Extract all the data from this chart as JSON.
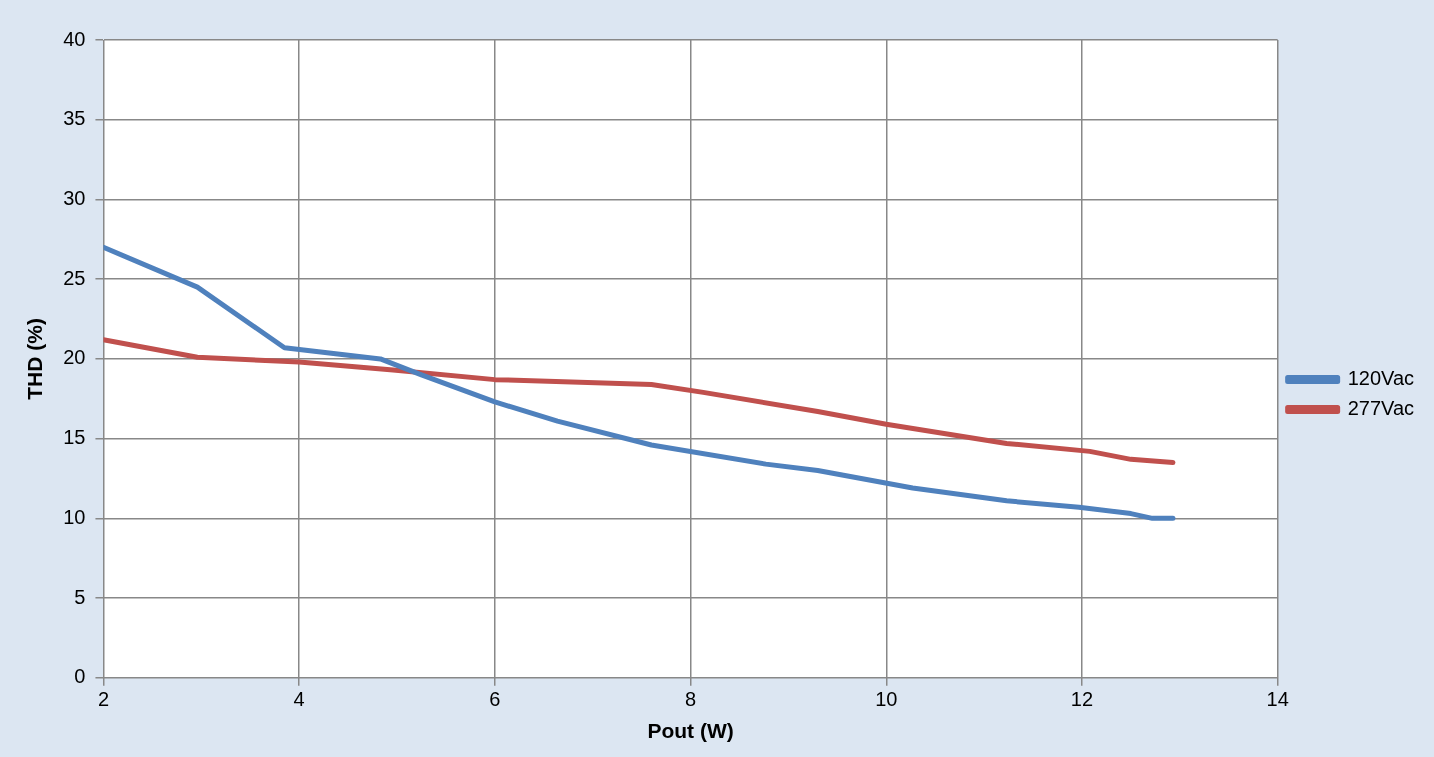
{
  "chart_data": {
    "type": "line",
    "xlabel": "Pout (W)",
    "ylabel": "THD (%)",
    "xlim": [
      2,
      14
    ],
    "xticks": [
      2,
      4,
      6,
      8,
      10,
      12,
      14
    ],
    "ylim": [
      0,
      40
    ],
    "yticks": [
      0,
      5,
      10,
      15,
      20,
      25,
      30,
      35,
      40
    ],
    "grid": true,
    "legend": "right",
    "marker": "none",
    "series": [
      {
        "name": "120Vac",
        "color": "#4f81bd",
        "x": [
          2,
          2.96,
          3.85,
          4.83,
          5.25,
          6,
          6.64,
          7.6,
          8.77,
          9.3,
          10.27,
          11.23,
          11.97,
          12.5,
          12.72,
          12.93
        ],
        "values": [
          27.0,
          24.5,
          20.7,
          20.0,
          19.0,
          17.3,
          16.1,
          14.6,
          13.4,
          13.0,
          11.9,
          11.1,
          10.7,
          10.3,
          10.0,
          10.0
        ]
      },
      {
        "name": "277Vac",
        "color": "#c0504d",
        "x": [
          2,
          2.96,
          4,
          4.96,
          6,
          7.6,
          8.13,
          9.3,
          10,
          11.23,
          12.08,
          12.5,
          12.93
        ],
        "values": [
          21.2,
          20.1,
          19.8,
          19.3,
          18.7,
          18.4,
          17.9,
          16.7,
          15.9,
          14.7,
          14.2,
          13.7,
          13.5
        ]
      }
    ]
  }
}
